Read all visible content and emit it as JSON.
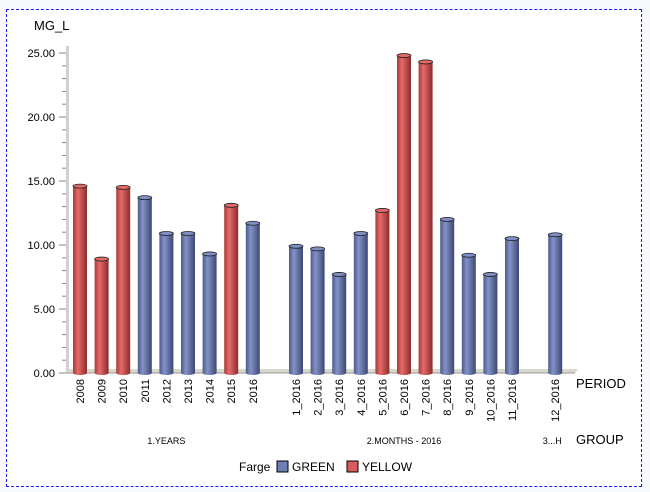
{
  "chart_data": {
    "type": "bar",
    "ylabel": "MG_L",
    "xlabel": "PERIOD",
    "group_label": "GROUP",
    "ylim": [
      0,
      25
    ],
    "yticks": [
      "0.00",
      "5.00",
      "10.00",
      "15.00",
      "20.00",
      "25.00"
    ],
    "ytick_values": [
      0,
      5,
      10,
      15,
      20,
      25
    ],
    "legend": {
      "title": "Farge",
      "position": "bottom",
      "entries": [
        {
          "name": "GREEN",
          "color": "#6f7fb5"
        },
        {
          "name": "YELLOW",
          "color": "#d95b5b"
        }
      ]
    },
    "groups": [
      {
        "name": "1.YEARS",
        "bars": [
          {
            "label": "2008",
            "value": 14.6,
            "series": "YELLOW"
          },
          {
            "label": "2009",
            "value": 8.9,
            "series": "YELLOW"
          },
          {
            "label": "2010",
            "value": 14.5,
            "series": "YELLOW"
          },
          {
            "label": "2011",
            "value": 13.7,
            "series": "GREEN"
          },
          {
            "label": "2012",
            "value": 10.9,
            "series": "GREEN"
          },
          {
            "label": "2013",
            "value": 10.9,
            "series": "GREEN"
          },
          {
            "label": "2014",
            "value": 9.3,
            "series": "GREEN"
          },
          {
            "label": "2015",
            "value": 13.1,
            "series": "YELLOW"
          },
          {
            "label": "2016",
            "value": 11.7,
            "series": "GREEN"
          }
        ]
      },
      {
        "name": "2.MONTHS - 2016",
        "bars": [
          {
            "label": "1_2016",
            "value": 9.9,
            "series": "GREEN"
          },
          {
            "label": "2_2016",
            "value": 9.7,
            "series": "GREEN"
          },
          {
            "label": "3_2016",
            "value": 7.7,
            "series": "GREEN"
          },
          {
            "label": "4_2016",
            "value": 10.9,
            "series": "GREEN"
          },
          {
            "label": "5_2016",
            "value": 12.7,
            "series": "YELLOW"
          },
          {
            "label": "6_2016",
            "value": 24.8,
            "series": "YELLOW"
          },
          {
            "label": "7_2016",
            "value": 24.3,
            "series": "YELLOW"
          },
          {
            "label": "8_2016",
            "value": 12.0,
            "series": "GREEN"
          },
          {
            "label": "9_2016",
            "value": 9.2,
            "series": "GREEN"
          },
          {
            "label": "10_2016",
            "value": 7.7,
            "series": "GREEN"
          },
          {
            "label": "11_2016",
            "value": 10.5,
            "series": "GREEN"
          }
        ]
      },
      {
        "name": "3...H",
        "bars": [
          {
            "label": "12_2016",
            "value": 10.8,
            "series": "GREEN"
          }
        ]
      }
    ]
  }
}
